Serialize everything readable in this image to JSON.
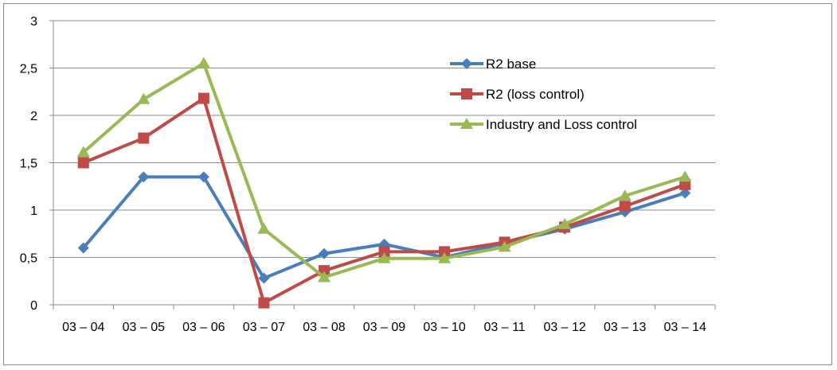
{
  "chart_data": {
    "type": "line",
    "title": "",
    "xlabel": "",
    "ylabel": "",
    "categories": [
      "03 – 04",
      "03 – 05",
      "03 – 06",
      "03 – 07",
      "03 – 08",
      "03 – 09",
      "03 – 10",
      "03 – 11",
      "03 – 12",
      "03 – 13",
      "03 – 14"
    ],
    "ylim": [
      0,
      3
    ],
    "yticks": [
      0,
      0.5,
      1,
      1.5,
      2,
      2.5,
      3
    ],
    "ytick_labels": [
      "0",
      "0,5",
      "1",
      "1,5",
      "2",
      "2,5",
      "3"
    ],
    "grid": true,
    "legend_position": "right-inside",
    "series": [
      {
        "name": "R2 base",
        "color": "#4a7ebb",
        "marker": "diamond",
        "values": [
          0.6,
          1.35,
          1.35,
          0.28,
          0.54,
          0.64,
          0.5,
          0.65,
          0.8,
          0.98,
          1.18
        ]
      },
      {
        "name": "R2 (loss control)",
        "color": "#be4b48",
        "marker": "square",
        "values": [
          1.5,
          1.76,
          2.18,
          0.02,
          0.36,
          0.56,
          0.56,
          0.66,
          0.82,
          1.04,
          1.27
        ]
      },
      {
        "name": "Industry and Loss control",
        "color": "#98b954",
        "marker": "triangle",
        "values": [
          1.61,
          2.17,
          2.55,
          0.8,
          0.29,
          0.49,
          0.49,
          0.61,
          0.85,
          1.15,
          1.35
        ]
      }
    ]
  }
}
